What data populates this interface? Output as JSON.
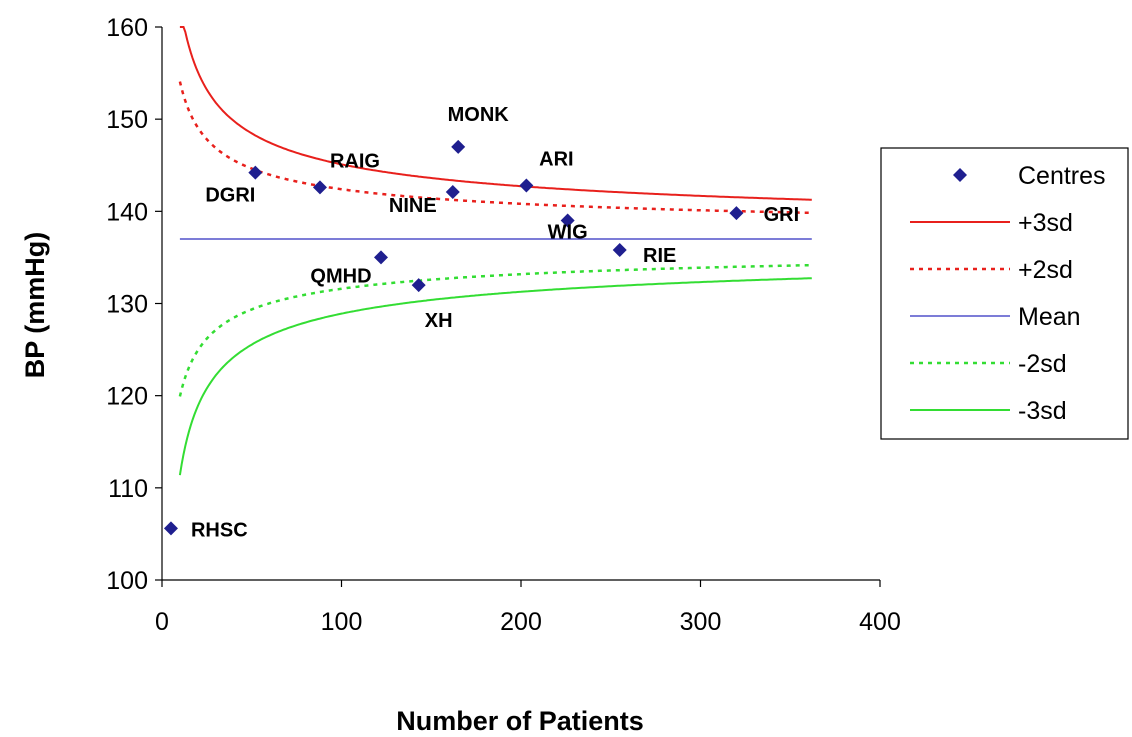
{
  "chart_data": {
    "type": "scatter",
    "xlabel": "Number of Patients",
    "ylabel": "BP (mmHg)",
    "xlim": [
      0,
      400
    ],
    "ylim": [
      100,
      160
    ],
    "xticks": [
      "0",
      "100",
      "200",
      "300",
      "400"
    ],
    "yticks": [
      "100",
      "110",
      "120",
      "130",
      "140",
      "150",
      "160"
    ],
    "grid": false,
    "legend_position": "right",
    "colors": {
      "centres": "#1f1f8f",
      "plus3sd": "#e8201c",
      "plus2sd": "#e8201c",
      "mean": "#2f2fbf",
      "minus2sd": "#33dd33",
      "minus3sd": "#33dd33"
    },
    "centres": {
      "name": "Centres",
      "points": [
        {
          "label": "RHSC",
          "x": 5,
          "y": 105.6
        },
        {
          "label": "DGRI",
          "x": 52,
          "y": 144.2
        },
        {
          "label": "RAIG",
          "x": 88,
          "y": 142.6
        },
        {
          "label": "QMHD",
          "x": 122,
          "y": 135.0
        },
        {
          "label": "XH",
          "x": 143,
          "y": 132.0
        },
        {
          "label": "NINE",
          "x": 162,
          "y": 142.1
        },
        {
          "label": "MONK",
          "x": 165,
          "y": 147.0
        },
        {
          "label": "ARI",
          "x": 203,
          "y": 142.8
        },
        {
          "label": "WIG",
          "x": 226,
          "y": 139.0
        },
        {
          "label": "RIE",
          "x": 255,
          "y": 135.8
        },
        {
          "label": "GRI",
          "x": 320,
          "y": 139.8
        }
      ]
    },
    "lines": [
      {
        "name": "+3sd",
        "style": "solid",
        "mean": 137,
        "z": 3
      },
      {
        "name": "+2sd",
        "style": "dotted",
        "mean": 137,
        "z": 2
      },
      {
        "name": "Mean",
        "style": "solid",
        "mean": 137,
        "z": 0
      },
      {
        "name": "-2sd",
        "style": "dotted",
        "mean": 137,
        "z": -2
      },
      {
        "name": "-3sd",
        "style": "solid",
        "mean": 137,
        "z": -3
      }
    ],
    "limit_sd_coefficient": 27,
    "line_x_range": [
      10,
      362
    ]
  }
}
